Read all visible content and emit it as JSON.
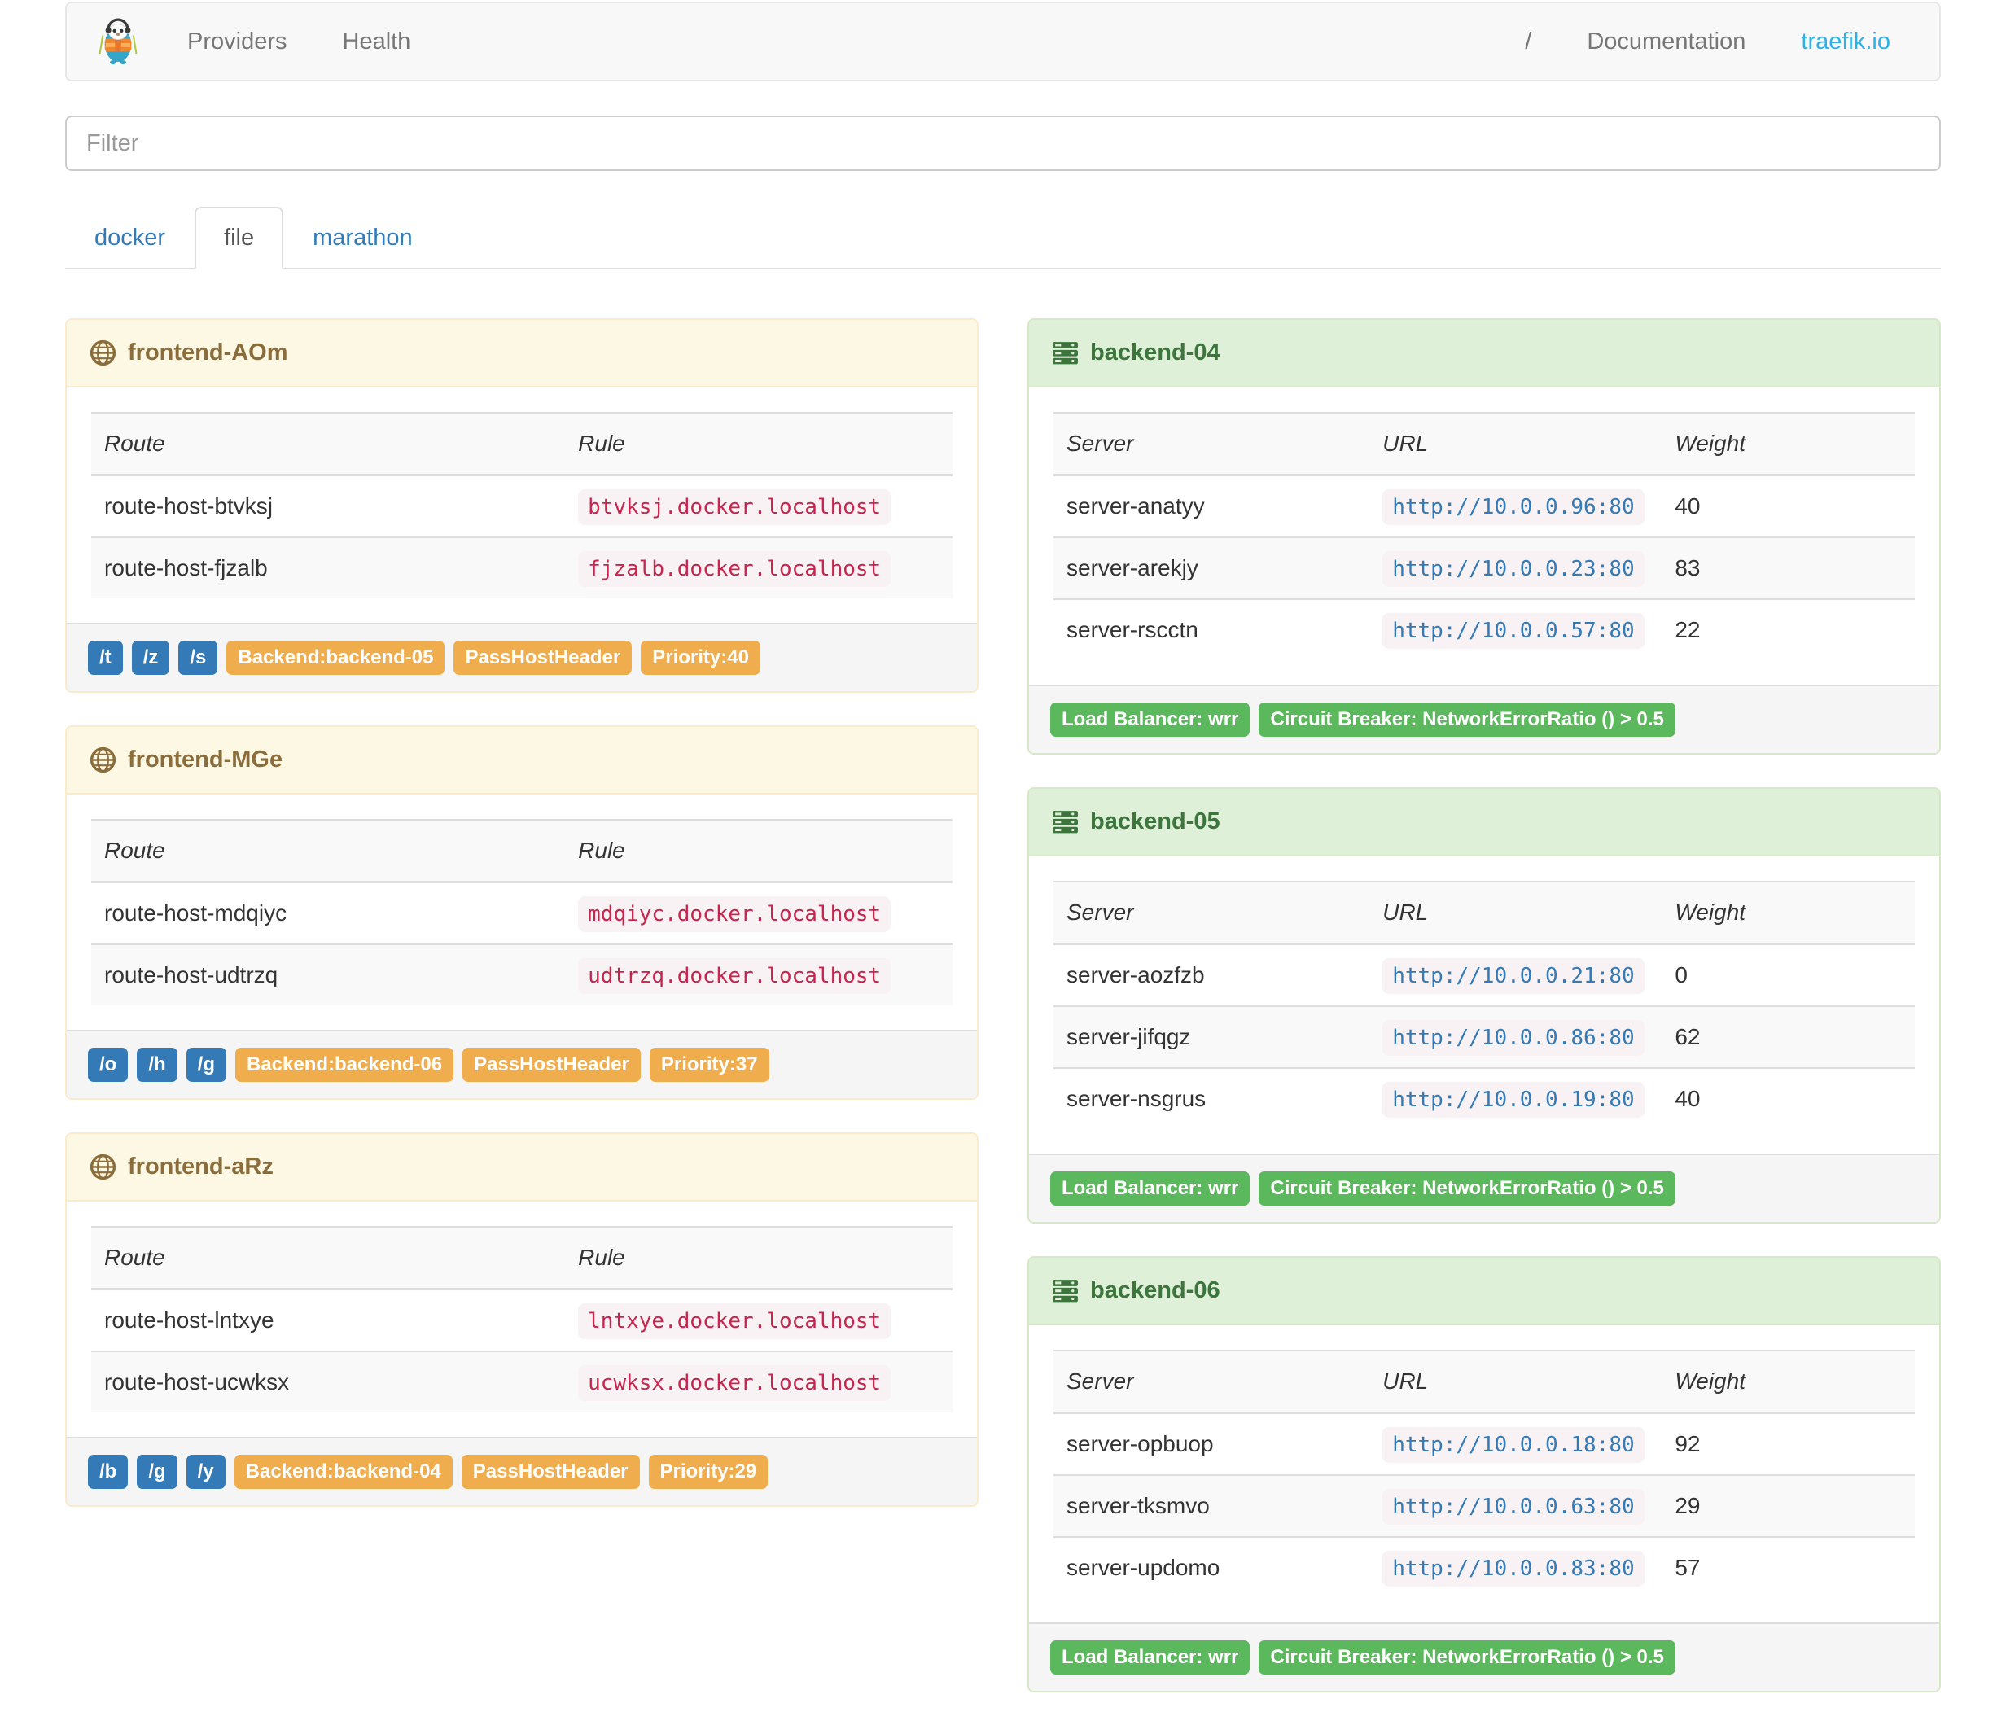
{
  "navbar": {
    "providers_label": "Providers",
    "health_label": "Health",
    "separator": "/",
    "documentation_label": "Documentation",
    "site_label": "traefik.io"
  },
  "filter": {
    "placeholder": "Filter"
  },
  "tabs": [
    {
      "label": "docker",
      "active": false
    },
    {
      "label": "file",
      "active": true
    },
    {
      "label": "marathon",
      "active": false
    }
  ],
  "frontend_columns": [
    "Route",
    "Rule"
  ],
  "backend_columns": [
    "Server",
    "URL",
    "Weight"
  ],
  "frontends": [
    {
      "title": "frontend-AOm",
      "routes": [
        {
          "route": "route-host-btvksj",
          "rule": "btvksj.docker.localhost"
        },
        {
          "route": "route-host-fjzalb",
          "rule": "fjzalb.docker.localhost"
        }
      ],
      "entry_points": [
        "/t",
        "/z",
        "/s"
      ],
      "tags": [
        "Backend:backend-05",
        "PassHostHeader",
        "Priority:40"
      ]
    },
    {
      "title": "frontend-MGe",
      "routes": [
        {
          "route": "route-host-mdqiyc",
          "rule": "mdqiyc.docker.localhost"
        },
        {
          "route": "route-host-udtrzq",
          "rule": "udtrzq.docker.localhost"
        }
      ],
      "entry_points": [
        "/o",
        "/h",
        "/g"
      ],
      "tags": [
        "Backend:backend-06",
        "PassHostHeader",
        "Priority:37"
      ]
    },
    {
      "title": "frontend-aRz",
      "routes": [
        {
          "route": "route-host-lntxye",
          "rule": "lntxye.docker.localhost"
        },
        {
          "route": "route-host-ucwksx",
          "rule": "ucwksx.docker.localhost"
        }
      ],
      "entry_points": [
        "/b",
        "/g",
        "/y"
      ],
      "tags": [
        "Backend:backend-04",
        "PassHostHeader",
        "Priority:29"
      ]
    }
  ],
  "backends": [
    {
      "title": "backend-04",
      "servers": [
        {
          "server": "server-anatyy",
          "url": "http://10.0.0.96:80",
          "weight": "40"
        },
        {
          "server": "server-arekjy",
          "url": "http://10.0.0.23:80",
          "weight": "83"
        },
        {
          "server": "server-rscctn",
          "url": "http://10.0.0.57:80",
          "weight": "22"
        }
      ],
      "tags": [
        "Load Balancer: wrr",
        "Circuit Breaker: NetworkErrorRatio () > 0.5"
      ]
    },
    {
      "title": "backend-05",
      "servers": [
        {
          "server": "server-aozfzb",
          "url": "http://10.0.0.21:80",
          "weight": "0"
        },
        {
          "server": "server-jifqgz",
          "url": "http://10.0.0.86:80",
          "weight": "62"
        },
        {
          "server": "server-nsgrus",
          "url": "http://10.0.0.19:80",
          "weight": "40"
        }
      ],
      "tags": [
        "Load Balancer: wrr",
        "Circuit Breaker: NetworkErrorRatio () > 0.5"
      ]
    },
    {
      "title": "backend-06",
      "servers": [
        {
          "server": "server-opbuop",
          "url": "http://10.0.0.18:80",
          "weight": "92"
        },
        {
          "server": "server-tksmvo",
          "url": "http://10.0.0.63:80",
          "weight": "29"
        },
        {
          "server": "server-updomo",
          "url": "http://10.0.0.83:80",
          "weight": "57"
        }
      ],
      "tags": [
        "Load Balancer: wrr",
        "Circuit Breaker: NetworkErrorRatio () > 0.5"
      ]
    }
  ],
  "icons": {
    "brand": "traefik-logo",
    "frontend": "globe-icon",
    "backend": "server-icon"
  },
  "colors": {
    "frontend_accent": "#8a6d3b",
    "frontend_heading_bg": "#fcf8e3",
    "frontend_border": "#faebcc",
    "backend_accent": "#3c763d",
    "backend_heading_bg": "#dff0d8",
    "backend_border": "#d6e9c6",
    "label_blue": "#337ab7",
    "label_orange": "#f0ad4e",
    "label_green": "#5cb85c",
    "code_text": "#c7254e",
    "code_bg": "#f9f2f4",
    "url_link": "#337ab7",
    "tab_link": "#337ab7",
    "navbar_link": "#777777",
    "site_link": "#2db1e8",
    "navbar_bg": "#f8f8f8"
  }
}
